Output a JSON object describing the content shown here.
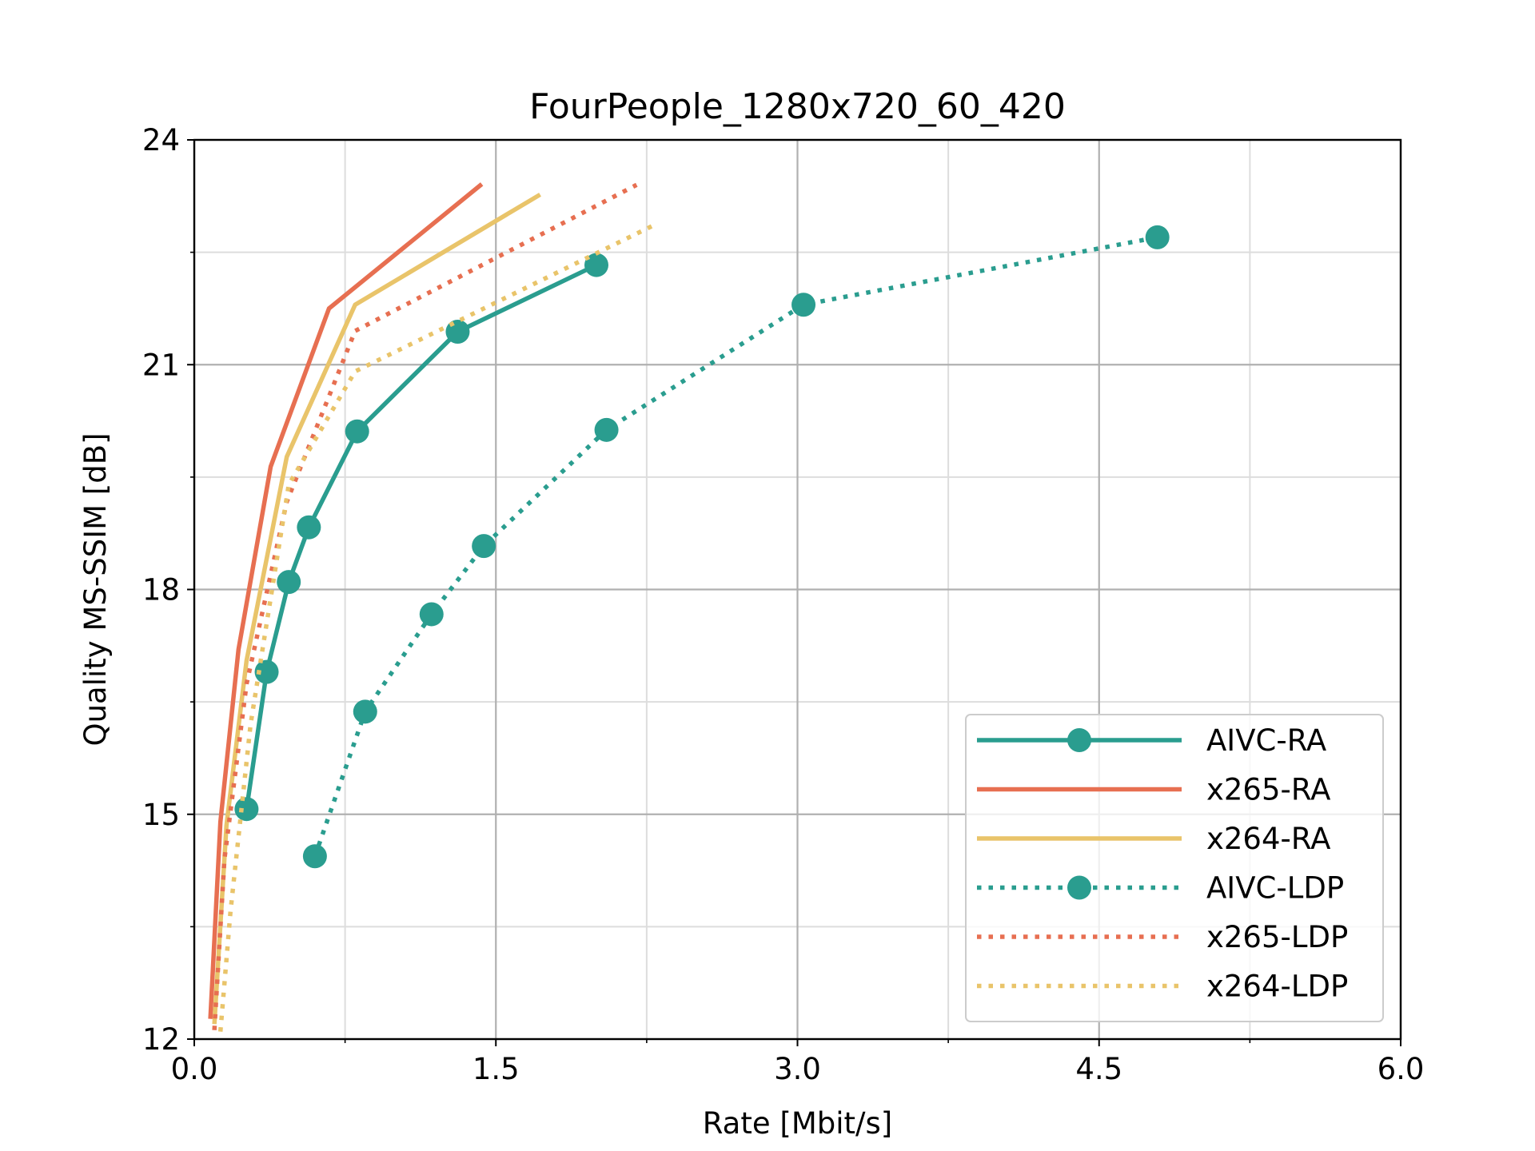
{
  "chart_data": {
    "type": "line",
    "title": "FourPeople_1280x720_60_420",
    "xlabel": "Rate [Mbit/s]",
    "ylabel": "Quality MS-SSIM [dB]",
    "xlim": [
      0,
      6
    ],
    "ylim": [
      12,
      24
    ],
    "xticks": [
      0.0,
      1.5,
      3.0,
      4.5,
      6.0
    ],
    "xtick_labels": [
      "0.0",
      "1.5",
      "3.0",
      "4.5",
      "6.0"
    ],
    "xminor": [
      0.75,
      2.25,
      3.75,
      5.25
    ],
    "yticks": [
      12,
      15,
      18,
      21,
      24
    ],
    "ytick_labels": [
      "12",
      "15",
      "18",
      "21",
      "24"
    ],
    "yminor": [
      13.5,
      16.5,
      19.5,
      22.5
    ],
    "grid": true,
    "legend_position": "lower-right",
    "series": [
      {
        "name": "AIVC-RA",
        "color": "#2a9d8f",
        "style": "solid",
        "marker": "circle",
        "x": [
          0.26,
          0.36,
          0.47,
          0.57,
          0.81,
          1.31,
          2.0
        ],
        "y": [
          15.07,
          16.9,
          18.1,
          18.83,
          20.11,
          21.44,
          22.33
        ]
      },
      {
        "name": "x265-RA",
        "color": "#e76f51",
        "style": "solid",
        "marker": "none",
        "x": [
          0.08,
          0.13,
          0.22,
          0.38,
          0.67,
          1.43
        ],
        "y": [
          12.27,
          14.9,
          17.2,
          19.64,
          21.75,
          23.41
        ]
      },
      {
        "name": "x264-RA",
        "color": "#e9c46a",
        "style": "solid",
        "marker": "none",
        "x": [
          0.1,
          0.16,
          0.26,
          0.46,
          0.8,
          1.72
        ],
        "y": [
          12.2,
          14.85,
          17.05,
          19.77,
          21.8,
          23.27
        ]
      },
      {
        "name": "AIVC-LDP",
        "color": "#2a9d8f",
        "style": "dotted",
        "marker": "circle",
        "x": [
          0.6,
          0.85,
          1.18,
          1.44,
          2.05,
          3.03,
          4.79
        ],
        "y": [
          14.44,
          16.37,
          17.67,
          18.58,
          20.13,
          21.8,
          22.7
        ]
      },
      {
        "name": "x265-LDP",
        "color": "#e76f51",
        "style": "dotted",
        "marker": "none",
        "x": [
          0.1,
          0.15,
          0.26,
          0.46,
          0.8,
          2.2
        ],
        "y": [
          12.12,
          14.4,
          16.74,
          19.17,
          21.45,
          23.4
        ]
      },
      {
        "name": "x264-LDP",
        "color": "#e9c46a",
        "style": "dotted",
        "marker": "none",
        "x": [
          0.13,
          0.18,
          0.28,
          0.47,
          0.8,
          2.3
        ],
        "y": [
          12.1,
          13.7,
          16.2,
          19.4,
          20.91,
          22.88
        ]
      }
    ]
  }
}
